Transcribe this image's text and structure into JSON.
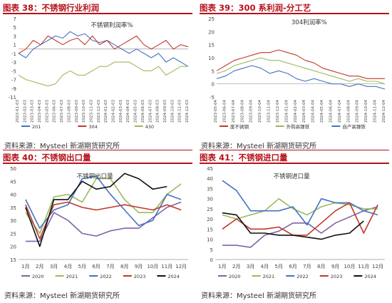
{
  "headers": [
    "图表 38：不锈钢行业利润",
    "图表 39：300 系利润-分工艺",
    "图表 40：不锈钢出口量",
    "图表 41：不锈钢进口量"
  ],
  "sources": [
    "资料来源：Mysteel 新湖期货研究所",
    "资料来源：Mysteel 新湖期货研究所",
    "资料来源：Mysteel 新湖期货研究所",
    "资料来源：Mysteel 新湖期货研究所"
  ],
  "colors": {
    "header_red": "#b5121b",
    "blue": "#4472c4",
    "red": "#c0392b",
    "green": "#9bbb59",
    "purple": "#8064a2",
    "black": "#111111"
  },
  "chart_data": [
    {
      "type": "line",
      "title": "不锈钢利润率%",
      "yticks": [
        "7",
        "5",
        "3",
        "1",
        "-1",
        "-3",
        "-5",
        "-7",
        "-9",
        "-11"
      ],
      "ylim": [
        -11,
        7
      ],
      "xticks": [
        "2023-01-03",
        "2023-02-03",
        "2023-03-03",
        "2023-04-03",
        "2023-05-03",
        "2023-06-03",
        "2023-07-03",
        "2023-08-03",
        "2023-09-03",
        "2023-10-03",
        "2023-11-03",
        "2023-12-03",
        "2024-01-03",
        "2024-02-03",
        "2024-03-03",
        "2024-04-03",
        "2024-05-03",
        "2024-06-03",
        "2024-07-03",
        "2024-08-03",
        "2024-09-03",
        "2024-10-03",
        "2024-11-03",
        "2024-12-03"
      ],
      "series": [
        {
          "name": "201",
          "color": "#4472c4",
          "values": [
            -1,
            -2,
            0,
            1,
            2,
            3,
            2.5,
            4,
            3,
            3.5,
            2,
            1.5,
            2,
            1,
            0,
            -1,
            0,
            -1,
            -2,
            -1,
            -3,
            -2,
            -3,
            -4
          ]
        },
        {
          "name": "304",
          "color": "#c0392b",
          "values": [
            -1,
            0,
            2,
            1,
            3,
            2,
            1,
            2,
            2.5,
            1,
            3,
            1,
            2,
            0,
            1,
            2,
            3,
            1,
            0,
            1,
            2,
            0,
            1,
            0.5
          ]
        },
        {
          "name": "430",
          "color": "#9bbb59",
          "values": [
            -6,
            -7,
            -7.5,
            -8,
            -8.5,
            -8,
            -6,
            -5,
            -6,
            -6,
            -5,
            -4,
            -4,
            -3,
            -3,
            -3,
            -4,
            -5,
            -5,
            -4,
            -6,
            -5,
            -4,
            -4
          ]
        }
      ]
    },
    {
      "type": "line",
      "title": "304利润率%",
      "yticks": [
        "25",
        "20",
        "15",
        "10",
        "5",
        "0",
        "-5"
      ],
      "ylim": [
        -5,
        25
      ],
      "xticks": [
        "2023-05-04",
        "2023-06-04",
        "2023-07-04",
        "2023-08-04",
        "2023-09-04",
        "2023-10-04",
        "2023-11-04",
        "2023-12-04",
        "2024-01-04",
        "2024-02-04",
        "2024-03-04",
        "2024-04-04",
        "2024-05-04",
        "2024-06-04",
        "2024-07-04",
        "2024-08-04",
        "2024-09-04",
        "2024-10-04",
        "2024-11-04",
        "2024-12-04"
      ],
      "series": [
        {
          "name": "废不锈钢",
          "color": "#c0392b",
          "values": [
            5,
            7,
            9,
            10,
            11,
            12,
            12,
            13,
            12,
            11,
            9,
            8,
            6,
            5,
            4,
            3,
            3,
            2,
            2,
            2
          ]
        },
        {
          "name": "外购高镍铁",
          "color": "#9bbb59",
          "values": [
            4,
            5,
            7,
            8,
            9,
            10,
            9,
            9,
            8,
            7,
            6,
            5,
            4,
            3,
            2,
            1,
            2,
            1,
            1,
            0
          ]
        },
        {
          "name": "自产高镍铁",
          "color": "#4472c4",
          "values": [
            2,
            3,
            5,
            6,
            7,
            6,
            4,
            5,
            4,
            2,
            1,
            2,
            1,
            0,
            0,
            -1,
            0,
            -1,
            -1,
            -2
          ]
        }
      ]
    },
    {
      "type": "line",
      "title": "不锈钢出口量",
      "yticks": [
        "50",
        "45",
        "40",
        "35",
        "30",
        "25",
        "20",
        "15"
      ],
      "ylim": [
        15,
        50
      ],
      "categories": [
        "1月",
        "2月",
        "3月",
        "4月",
        "5月",
        "6月",
        "7月",
        "8月",
        "9月",
        "10月",
        "11月",
        "12月"
      ],
      "series": [
        {
          "name": "2020",
          "color": "#8064a2",
          "values": [
            22,
            22,
            33,
            30,
            25,
            24,
            26,
            27,
            27,
            31,
            35,
            37
          ]
        },
        {
          "name": "2021",
          "color": "#9bbb59",
          "values": [
            33,
            25,
            39,
            40,
            37,
            46,
            46,
            38,
            33,
            33,
            40,
            44
          ]
        },
        {
          "name": "2022",
          "color": "#4472c4",
          "values": [
            38,
            27,
            34,
            36,
            46,
            47,
            40,
            34,
            28,
            30,
            40,
            38
          ]
        },
        {
          "name": "2023",
          "color": "#c0392b",
          "values": [
            36,
            23,
            36,
            37,
            35,
            34,
            35,
            36,
            35,
            34,
            36,
            34
          ]
        },
        {
          "name": "2024",
          "color": "#111111",
          "values": [
            35,
            20,
            38,
            38,
            45,
            42,
            43,
            48,
            46,
            42,
            43,
            null
          ]
        }
      ]
    },
    {
      "type": "line",
      "title": "不锈钢进口量",
      "yticks": [
        "45",
        "40",
        "35",
        "30",
        "25",
        "20",
        "15",
        "10",
        "5",
        "0"
      ],
      "ylim": [
        0,
        45
      ],
      "categories": [
        "1月",
        "2月",
        "3月",
        "4月",
        "5月",
        "6月",
        "7月",
        "8月",
        "9月",
        "10月",
        "11月",
        "12月"
      ],
      "series": [
        {
          "name": "2020",
          "color": "#8064a2",
          "values": [
            7,
            7,
            6,
            12,
            14,
            18,
            18,
            13,
            18,
            21,
            24,
            26
          ]
        },
        {
          "name": "2021",
          "color": "#9bbb59",
          "values": [
            22,
            20,
            22,
            24,
            30,
            25,
            22,
            26,
            28,
            27,
            25,
            25
          ]
        },
        {
          "name": "2022",
          "color": "#4472c4",
          "values": [
            39,
            34,
            24,
            24,
            24,
            26,
            17,
            30,
            28,
            28,
            24,
            22
          ]
        },
        {
          "name": "2023",
          "color": "#c0392b",
          "values": [
            15,
            20,
            15,
            15,
            16,
            12,
            12,
            18,
            24,
            28,
            13,
            27
          ]
        },
        {
          "name": "2024",
          "color": "#111111",
          "values": [
            23,
            22,
            13,
            13,
            12,
            12,
            11,
            10,
            12,
            13,
            19,
            null
          ]
        }
      ]
    }
  ]
}
